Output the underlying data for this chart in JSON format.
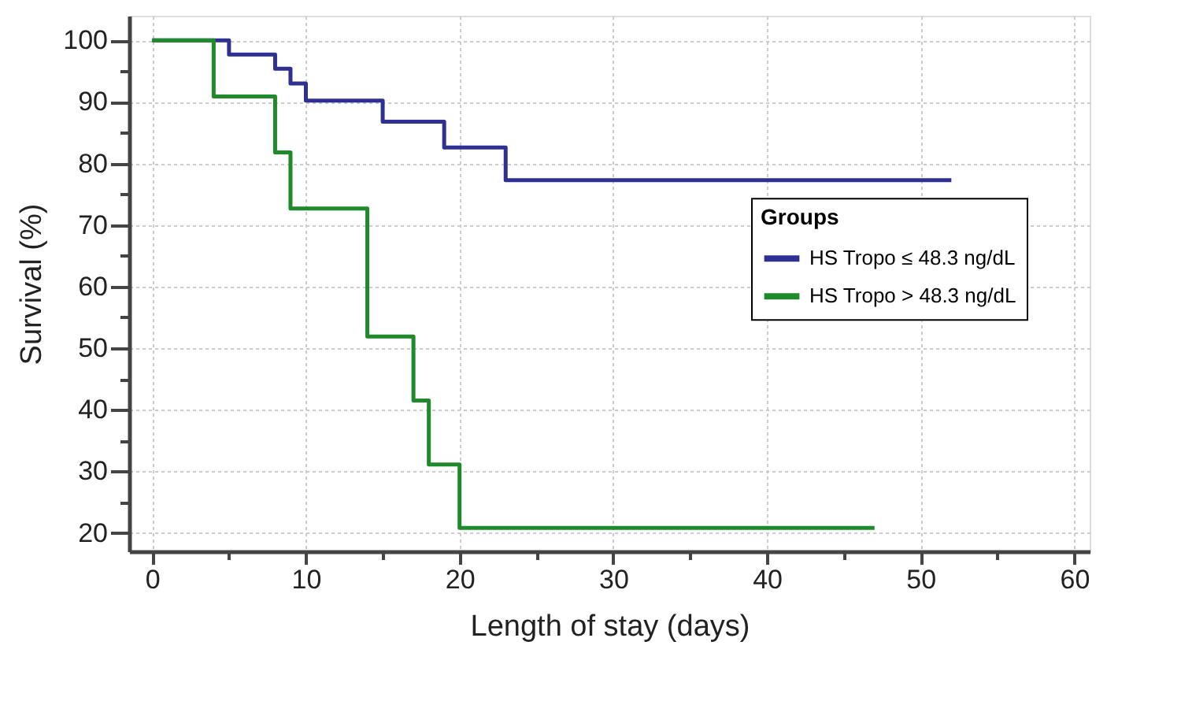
{
  "chart_data": {
    "type": "step",
    "xlabel": "Length of stay (days)",
    "ylabel": "Survival (%)",
    "legend_title": "Groups",
    "series": [
      {
        "name": "HS Tropo ≤ 48.3 ng/dL",
        "color": "#2e3192",
        "x": [
          0,
          5,
          8,
          9,
          10,
          15,
          19,
          23,
          52
        ],
        "values": [
          100,
          97.7,
          95.4,
          93,
          90.2,
          86.8,
          82.6,
          77.3,
          77.3
        ]
      },
      {
        "name": "HS Tropo > 48.3 ng/dL",
        "color": "#1f8a2a",
        "x": [
          0,
          4,
          8,
          9,
          14,
          17,
          18,
          20,
          47
        ],
        "values": [
          100,
          90.9,
          81.8,
          72.7,
          51.9,
          41.5,
          31.1,
          20.8,
          20.8
        ]
      }
    ],
    "xlim": [
      -1.5,
      61
    ],
    "ylim": [
      17,
      104
    ],
    "xticks": [
      0,
      {
        "value": 5,
        "label": null
      },
      10,
      {
        "value": 15,
        "label": null
      },
      20,
      {
        "value": 25,
        "label": null
      },
      30,
      {
        "value": 35,
        "label": null
      },
      40,
      {
        "value": 45,
        "label": null
      },
      50,
      {
        "value": 55,
        "label": null
      },
      60
    ],
    "yticks": [
      20,
      {
        "value": 25,
        "label": null
      },
      30,
      {
        "value": 35,
        "label": null
      },
      40,
      {
        "value": 45,
        "label": null
      },
      50,
      {
        "value": 55,
        "label": null
      },
      60,
      {
        "value": 65,
        "label": null
      },
      70,
      {
        "value": 75,
        "label": null
      },
      80,
      {
        "value": 85,
        "label": null
      },
      90,
      {
        "value": 95,
        "label": null
      },
      100
    ],
    "grid": true,
    "legend": "right",
    "line_style": "solid",
    "marker": "none"
  }
}
